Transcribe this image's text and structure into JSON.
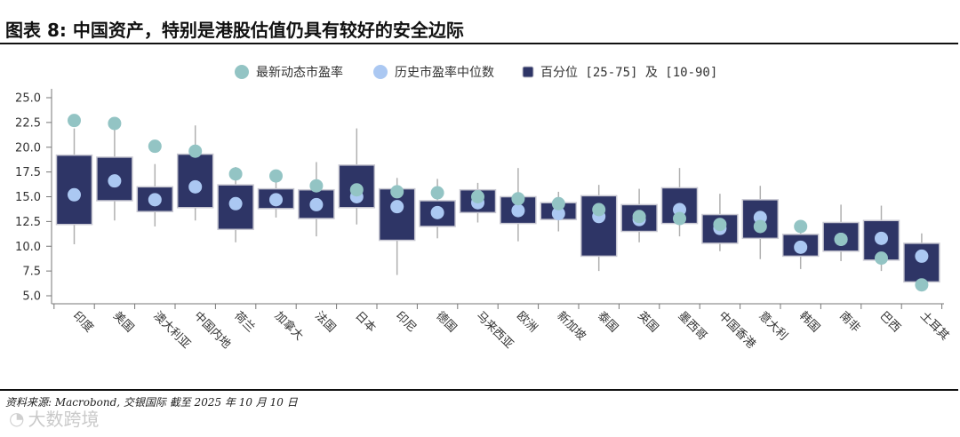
{
  "title": "图表 8: 中国资产，特别是港股估值仍具有较好的安全边际",
  "source": "资料来源: Macrobond, 交银国际  截至 2025 年 10 月 10 日",
  "watermark": "大数跨境",
  "colors": {
    "box": "#2e3566",
    "box_edge": "#c8c8d2",
    "whisker": "#b0b0b0",
    "latest": "#93c4c4",
    "median": "#abc8f2"
  },
  "chart_data": {
    "type": "box",
    "legend": {
      "latest": "最新动态市盈率",
      "median": "历史市盈率中位数",
      "box": "百分位 [25-75] 及 [10-90]",
      "placement": "top-center"
    },
    "ylim": [
      4,
      26
    ],
    "yticks": [
      "25.0",
      "22.5",
      "20.0",
      "17.5",
      "15.0",
      "12.5",
      "10.0",
      "7.5",
      "5.0"
    ],
    "categories": [
      "印度",
      "美国",
      "澳大利亚",
      "中国内地",
      "荷兰",
      "加拿大",
      "法国",
      "日本",
      "印尼",
      "德国",
      "马来西亚",
      "欧洲",
      "新加坡",
      "泰国",
      "英国",
      "墨西哥",
      "中国香港",
      "意大利",
      "韩国",
      "南非",
      "巴西",
      "土耳其"
    ],
    "series": [
      {
        "name": "百分位 [25-75] 及 [10-90]",
        "p10": [
          10.2,
          12.6,
          12.0,
          12.6,
          10.4,
          12.9,
          11.0,
          12.2,
          7.1,
          10.8,
          12.4,
          10.5,
          11.5,
          7.5,
          10.4,
          11.0,
          9.5,
          8.7,
          7.7,
          8.5,
          7.5,
          5.6
        ],
        "p25": [
          12.2,
          14.6,
          13.5,
          13.9,
          11.7,
          13.8,
          12.8,
          13.9,
          10.6,
          12.0,
          13.4,
          12.3,
          12.7,
          9.0,
          11.5,
          12.3,
          10.3,
          10.8,
          9.0,
          9.5,
          8.6,
          6.4
        ],
        "p75": [
          19.2,
          19.0,
          16.0,
          19.3,
          16.2,
          15.8,
          15.7,
          18.2,
          15.8,
          14.6,
          15.7,
          15.0,
          14.4,
          15.1,
          14.2,
          15.9,
          13.2,
          14.7,
          11.2,
          12.4,
          12.6,
          10.3
        ],
        "p90": [
          21.9,
          22.0,
          18.3,
          22.2,
          18.0,
          17.3,
          18.5,
          21.9,
          16.9,
          16.8,
          16.4,
          17.9,
          15.5,
          16.2,
          15.8,
          17.9,
          15.3,
          16.1,
          12.4,
          14.2,
          14.1,
          11.3
        ]
      },
      {
        "name": "历史市盈率中位数",
        "values": [
          15.2,
          16.6,
          14.7,
          16.0,
          14.3,
          14.7,
          14.2,
          15.0,
          14.0,
          13.4,
          14.4,
          13.6,
          13.3,
          13.0,
          12.7,
          13.7,
          11.8,
          12.9,
          9.9,
          10.7,
          10.8,
          9.0
        ]
      },
      {
        "name": "最新动态市盈率",
        "values": [
          22.7,
          22.4,
          20.1,
          19.6,
          17.3,
          17.1,
          16.1,
          15.7,
          15.5,
          15.4,
          15.0,
          14.8,
          14.3,
          13.7,
          13.0,
          12.8,
          12.2,
          12.0,
          12.0,
          10.7,
          8.8,
          6.1
        ]
      }
    ]
  }
}
